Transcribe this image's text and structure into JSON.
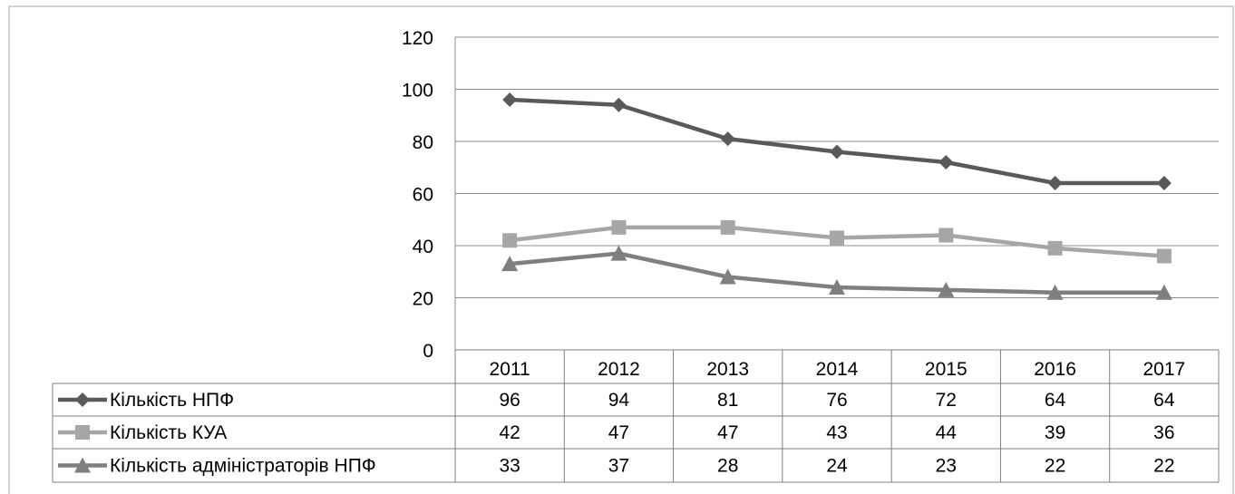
{
  "chart_data": {
    "type": "line",
    "title": "",
    "xlabel": "",
    "ylabel": "",
    "ylim": [
      0,
      120
    ],
    "yticks": [
      0,
      20,
      40,
      60,
      80,
      100,
      120
    ],
    "categories": [
      "2011",
      "2012",
      "2013",
      "2014",
      "2015",
      "2016",
      "2017"
    ],
    "grid": "horizontal",
    "legend": "data-table",
    "series": [
      {
        "name": "Кількість НПФ",
        "values": [
          96,
          94,
          81,
          76,
          72,
          64,
          64
        ],
        "color": "#595959",
        "marker": "diamond"
      },
      {
        "name": "Кількість КУА",
        "values": [
          42,
          47,
          47,
          43,
          44,
          39,
          36
        ],
        "color": "#a6a6a6",
        "marker": "square"
      },
      {
        "name": "Кількість адміністраторів НПФ",
        "values": [
          33,
          37,
          28,
          24,
          23,
          22,
          22
        ],
        "color": "#7f7f7f",
        "marker": "triangle"
      }
    ]
  }
}
